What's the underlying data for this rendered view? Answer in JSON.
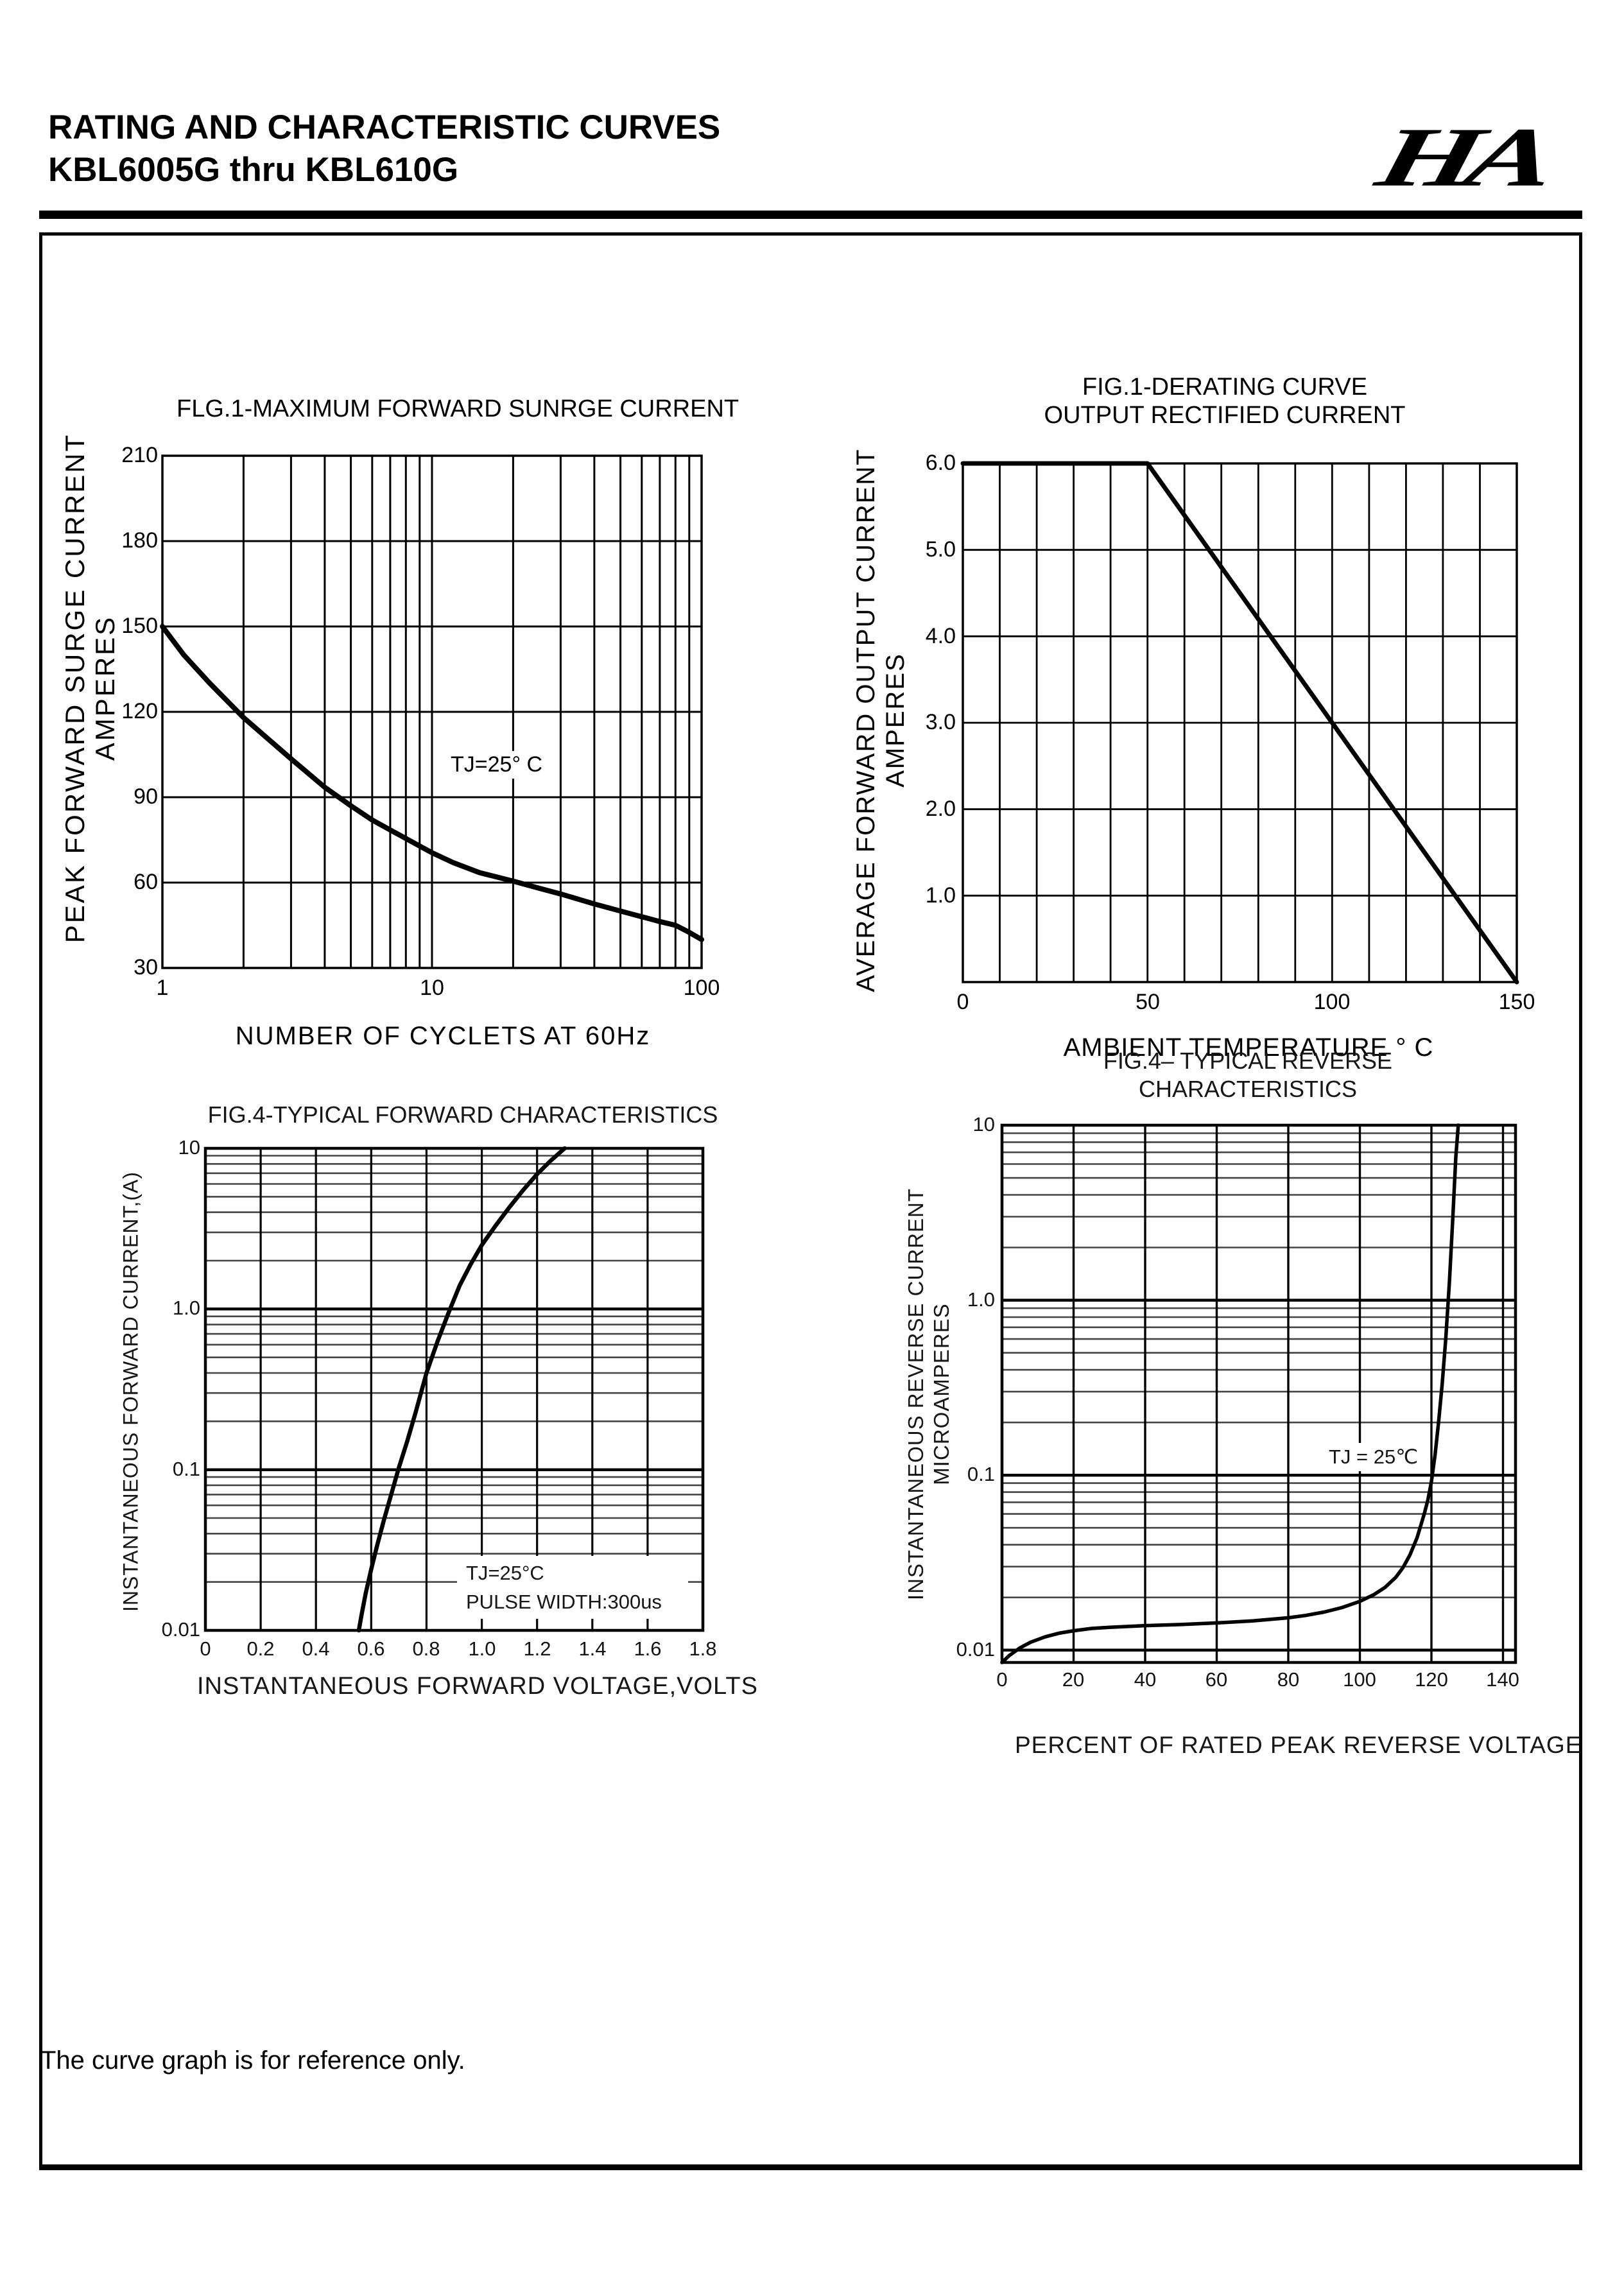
{
  "page": {
    "header": {
      "title_line1": "RATING AND CHARACTERISTIC CURVES",
      "title_line2": "KBL6005G thru KBL610G",
      "logo_text": "HA"
    },
    "footer_note": "The curve graph is for reference only."
  },
  "colors": {
    "ink": "#000000",
    "scan_ink": "#161616",
    "background": "#ffffff"
  },
  "chart_data": [
    {
      "id": "max-forward-surge-current",
      "type": "line",
      "title": "FLG.1-MAXIMUM FORWARD SUNRGE CURRENT",
      "xlabel": "NUMBER OF CYCLETS AT 60Hz",
      "ylabel_line1": "PEAK FORWARD SURGE CURRENT",
      "ylabel_line2": "AMPERES",
      "annotation": "TJ=25° C",
      "xscale": "log",
      "xlim": [
        1,
        100
      ],
      "yscale": "linear",
      "ylim": [
        30,
        210
      ],
      "grid": true,
      "legend": "none",
      "x_ticks": [
        {
          "v": 1,
          "label": "1"
        },
        {
          "v": 10,
          "label": "10"
        },
        {
          "v": 100,
          "label": "100"
        }
      ],
      "y_ticks": [
        {
          "v": 210,
          "label": "210"
        },
        {
          "v": 180,
          "label": "180"
        },
        {
          "v": 150,
          "label": "150"
        },
        {
          "v": 120,
          "label": "120"
        },
        {
          "v": 90,
          "label": "90"
        },
        {
          "v": 60,
          "label": "60"
        },
        {
          "v": 30,
          "label": "30"
        }
      ],
      "x_gridlines": [
        2,
        3,
        4,
        5,
        6,
        7,
        8,
        9,
        10,
        20,
        30,
        40,
        50,
        60,
        70,
        80,
        90
      ],
      "y_gridlines": [
        60,
        90,
        120,
        150,
        180
      ],
      "y_minor_gridlines": [],
      "series": [
        {
          "name": "peak_surge_current",
          "points": [
            [
              1,
              150
            ],
            [
              1.2,
              140
            ],
            [
              1.5,
              130
            ],
            [
              2,
              118
            ],
            [
              2.5,
              110
            ],
            [
              3,
              103.5
            ],
            [
              4,
              93.5
            ],
            [
              5,
              87
            ],
            [
              6,
              82
            ],
            [
              7,
              78.5
            ],
            [
              8,
              75.5
            ],
            [
              10,
              70.5
            ],
            [
              12,
              67
            ],
            [
              15,
              63.5
            ],
            [
              20,
              60.5
            ],
            [
              25,
              58
            ],
            [
              30,
              56
            ],
            [
              40,
              52.5
            ],
            [
              50,
              50
            ],
            [
              60,
              48
            ],
            [
              70,
              46.3
            ],
            [
              80,
              45
            ],
            [
              90,
              42.5
            ],
            [
              100,
              40
            ]
          ]
        }
      ]
    },
    {
      "id": "derating-curve",
      "type": "line",
      "title_line1": "FIG.1-DERATING CURVE",
      "title_line2": "OUTPUT RECTIFIED CURRENT",
      "xlabel": "AMBIENT TEMPERATURE ° C",
      "ylabel_line1": "AVERAGE FORWARD OUTPUT CURRENT",
      "ylabel_line2": "AMPERES",
      "xscale": "linear",
      "xlim": [
        0,
        150
      ],
      "yscale": "linear",
      "ylim": [
        0,
        6
      ],
      "grid": true,
      "legend": "none",
      "x_ticks": [
        {
          "v": 0,
          "label": "0"
        },
        {
          "v": 50,
          "label": "50"
        },
        {
          "v": 100,
          "label": "100"
        },
        {
          "v": 150,
          "label": "150"
        }
      ],
      "y_ticks": [
        {
          "v": 6,
          "label": "6.0"
        },
        {
          "v": 5,
          "label": "5.0"
        },
        {
          "v": 4,
          "label": "4.0"
        },
        {
          "v": 3,
          "label": "3.0"
        },
        {
          "v": 2,
          "label": "2.0"
        },
        {
          "v": 1,
          "label": "1.0"
        }
      ],
      "x_gridlines": [
        10,
        20,
        30,
        40,
        50,
        60,
        70,
        80,
        90,
        100,
        110,
        120,
        130,
        140
      ],
      "y_gridlines": [
        1,
        2,
        3,
        4,
        5
      ],
      "y_minor_gridlines": [],
      "series": [
        {
          "name": "average_forward_output_current",
          "points": [
            [
              0,
              6
            ],
            [
              50,
              6
            ],
            [
              150,
              0
            ]
          ]
        }
      ]
    },
    {
      "id": "typical-forward-characteristics",
      "type": "line",
      "title": "FIG.4-TYPICAL FORWARD CHARACTERISTICS",
      "xlabel": "INSTANTANEOUS FORWARD VOLTAGE,VOLTS",
      "ylabel": "INSTANTANEOUS FORWARD CURRENT,(A)",
      "annotation_line1": "TJ=25°C",
      "annotation_line2": "PULSE WIDTH:300us",
      "xscale": "linear",
      "xlim": [
        0,
        1.8
      ],
      "yscale": "log",
      "ylim": [
        0.01,
        10
      ],
      "grid": true,
      "legend": "none",
      "x_ticks": [
        {
          "v": 0,
          "label": "0"
        },
        {
          "v": 0.2,
          "label": "0.2"
        },
        {
          "v": 0.4,
          "label": "0.4"
        },
        {
          "v": 0.6,
          "label": "0.6"
        },
        {
          "v": 0.8,
          "label": "0.8"
        },
        {
          "v": 1.0,
          "label": "1.0"
        },
        {
          "v": 1.2,
          "label": "1.2"
        },
        {
          "v": 1.4,
          "label": "1.4"
        },
        {
          "v": 1.6,
          "label": "1.6"
        },
        {
          "v": 1.8,
          "label": "1.8"
        }
      ],
      "y_ticks": [
        {
          "v": 10,
          "label": "10"
        },
        {
          "v": 1,
          "label": "1.0"
        },
        {
          "v": 0.1,
          "label": "0.1"
        },
        {
          "v": 0.01,
          "label": "0.01"
        }
      ],
      "x_gridlines": [
        0.2,
        0.4,
        0.6,
        0.8,
        1.0,
        1.2,
        1.4,
        1.6
      ],
      "y_gridlines": [
        0.1,
        1
      ],
      "y_minor_gridlines": [
        0.02,
        0.03,
        0.04,
        0.05,
        0.06,
        0.07,
        0.08,
        0.09,
        0.2,
        0.3,
        0.4,
        0.5,
        0.6,
        0.7,
        0.8,
        0.9,
        2,
        3,
        4,
        5,
        6,
        7,
        8,
        9
      ],
      "series": [
        {
          "name": "instantaneous_forward_current",
          "points": [
            [
              0.555,
              0.01
            ],
            [
              0.565,
              0.0125
            ],
            [
              0.58,
              0.017
            ],
            [
              0.6,
              0.024
            ],
            [
              0.62,
              0.033
            ],
            [
              0.645,
              0.048
            ],
            [
              0.67,
              0.068
            ],
            [
              0.7,
              0.103
            ],
            [
              0.73,
              0.15
            ],
            [
              0.76,
              0.225
            ],
            [
              0.8,
              0.4
            ],
            [
              0.84,
              0.63
            ],
            [
              0.88,
              0.95
            ],
            [
              0.92,
              1.4
            ],
            [
              0.96,
              1.9
            ],
            [
              1.0,
              2.5
            ],
            [
              1.05,
              3.3
            ],
            [
              1.1,
              4.3
            ],
            [
              1.15,
              5.5
            ],
            [
              1.2,
              6.9
            ],
            [
              1.25,
              8.4
            ],
            [
              1.3,
              10
            ]
          ]
        }
      ]
    },
    {
      "id": "typical-reverse-characteristics",
      "type": "line",
      "title_line1": "FIG.4– TYPICAL REVERSE",
      "title_line2": "CHARACTERISTICS",
      "xlabel": "PERCENT OF RATED PEAK REVERSE VOLTAGE",
      "ylabel_line1": "INSTANTANEOUS REVERSE CURRENT",
      "ylabel_line2": "MICROAMPERES",
      "annotation": "TJ = 25℃",
      "xscale": "linear",
      "xlim": [
        0,
        143.5
      ],
      "yscale": "log",
      "ylim": [
        0.0085,
        10
      ],
      "grid": true,
      "legend": "none",
      "x_ticks": [
        {
          "v": 0,
          "label": "0"
        },
        {
          "v": 20,
          "label": "20"
        },
        {
          "v": 40,
          "label": "40"
        },
        {
          "v": 60,
          "label": "60"
        },
        {
          "v": 80,
          "label": "80"
        },
        {
          "v": 100,
          "label": "100"
        },
        {
          "v": 120,
          "label": "120"
        },
        {
          "v": 140,
          "label": "140"
        }
      ],
      "y_ticks": [
        {
          "v": 10,
          "label": "10"
        },
        {
          "v": 1,
          "label": "1.0"
        },
        {
          "v": 0.1,
          "label": "0.1"
        },
        {
          "v": 0.01,
          "label": "0.01"
        }
      ],
      "x_gridlines": [
        20,
        40,
        60,
        80,
        100,
        120,
        140
      ],
      "y_gridlines": [
        0.01,
        0.1,
        1
      ],
      "y_minor_gridlines": [
        0.02,
        0.03,
        0.04,
        0.05,
        0.06,
        0.07,
        0.08,
        0.09,
        0.2,
        0.3,
        0.4,
        0.5,
        0.6,
        0.7,
        0.8,
        0.9,
        2,
        3,
        4,
        5,
        6,
        7,
        8,
        9
      ],
      "series": [
        {
          "name": "instantaneous_reverse_current",
          "points": [
            [
              0,
              0.0085
            ],
            [
              2,
              0.0093
            ],
            [
              5,
              0.0103
            ],
            [
              8,
              0.0111
            ],
            [
              12,
              0.0119
            ],
            [
              16,
              0.0125
            ],
            [
              20,
              0.0129
            ],
            [
              25,
              0.0133
            ],
            [
              30,
              0.0135
            ],
            [
              40,
              0.0138
            ],
            [
              50,
              0.014
            ],
            [
              60,
              0.0143
            ],
            [
              70,
              0.0147
            ],
            [
              80,
              0.0153
            ],
            [
              85,
              0.0158
            ],
            [
              90,
              0.0165
            ],
            [
              95,
              0.0175
            ],
            [
              100,
              0.019
            ],
            [
              104,
              0.0208
            ],
            [
              107,
              0.0228
            ],
            [
              110,
              0.026
            ],
            [
              112,
              0.0295
            ],
            [
              114,
              0.035
            ],
            [
              116,
              0.044
            ],
            [
              118,
              0.06
            ],
            [
              119,
              0.072
            ],
            [
              120,
              0.092
            ],
            [
              121,
              0.13
            ],
            [
              122,
              0.2
            ],
            [
              123,
              0.33
            ],
            [
              124,
              0.6
            ],
            [
              125,
              1.25
            ],
            [
              126,
              3
            ],
            [
              126.8,
              6.5
            ],
            [
              127.5,
              10
            ]
          ]
        }
      ]
    }
  ]
}
